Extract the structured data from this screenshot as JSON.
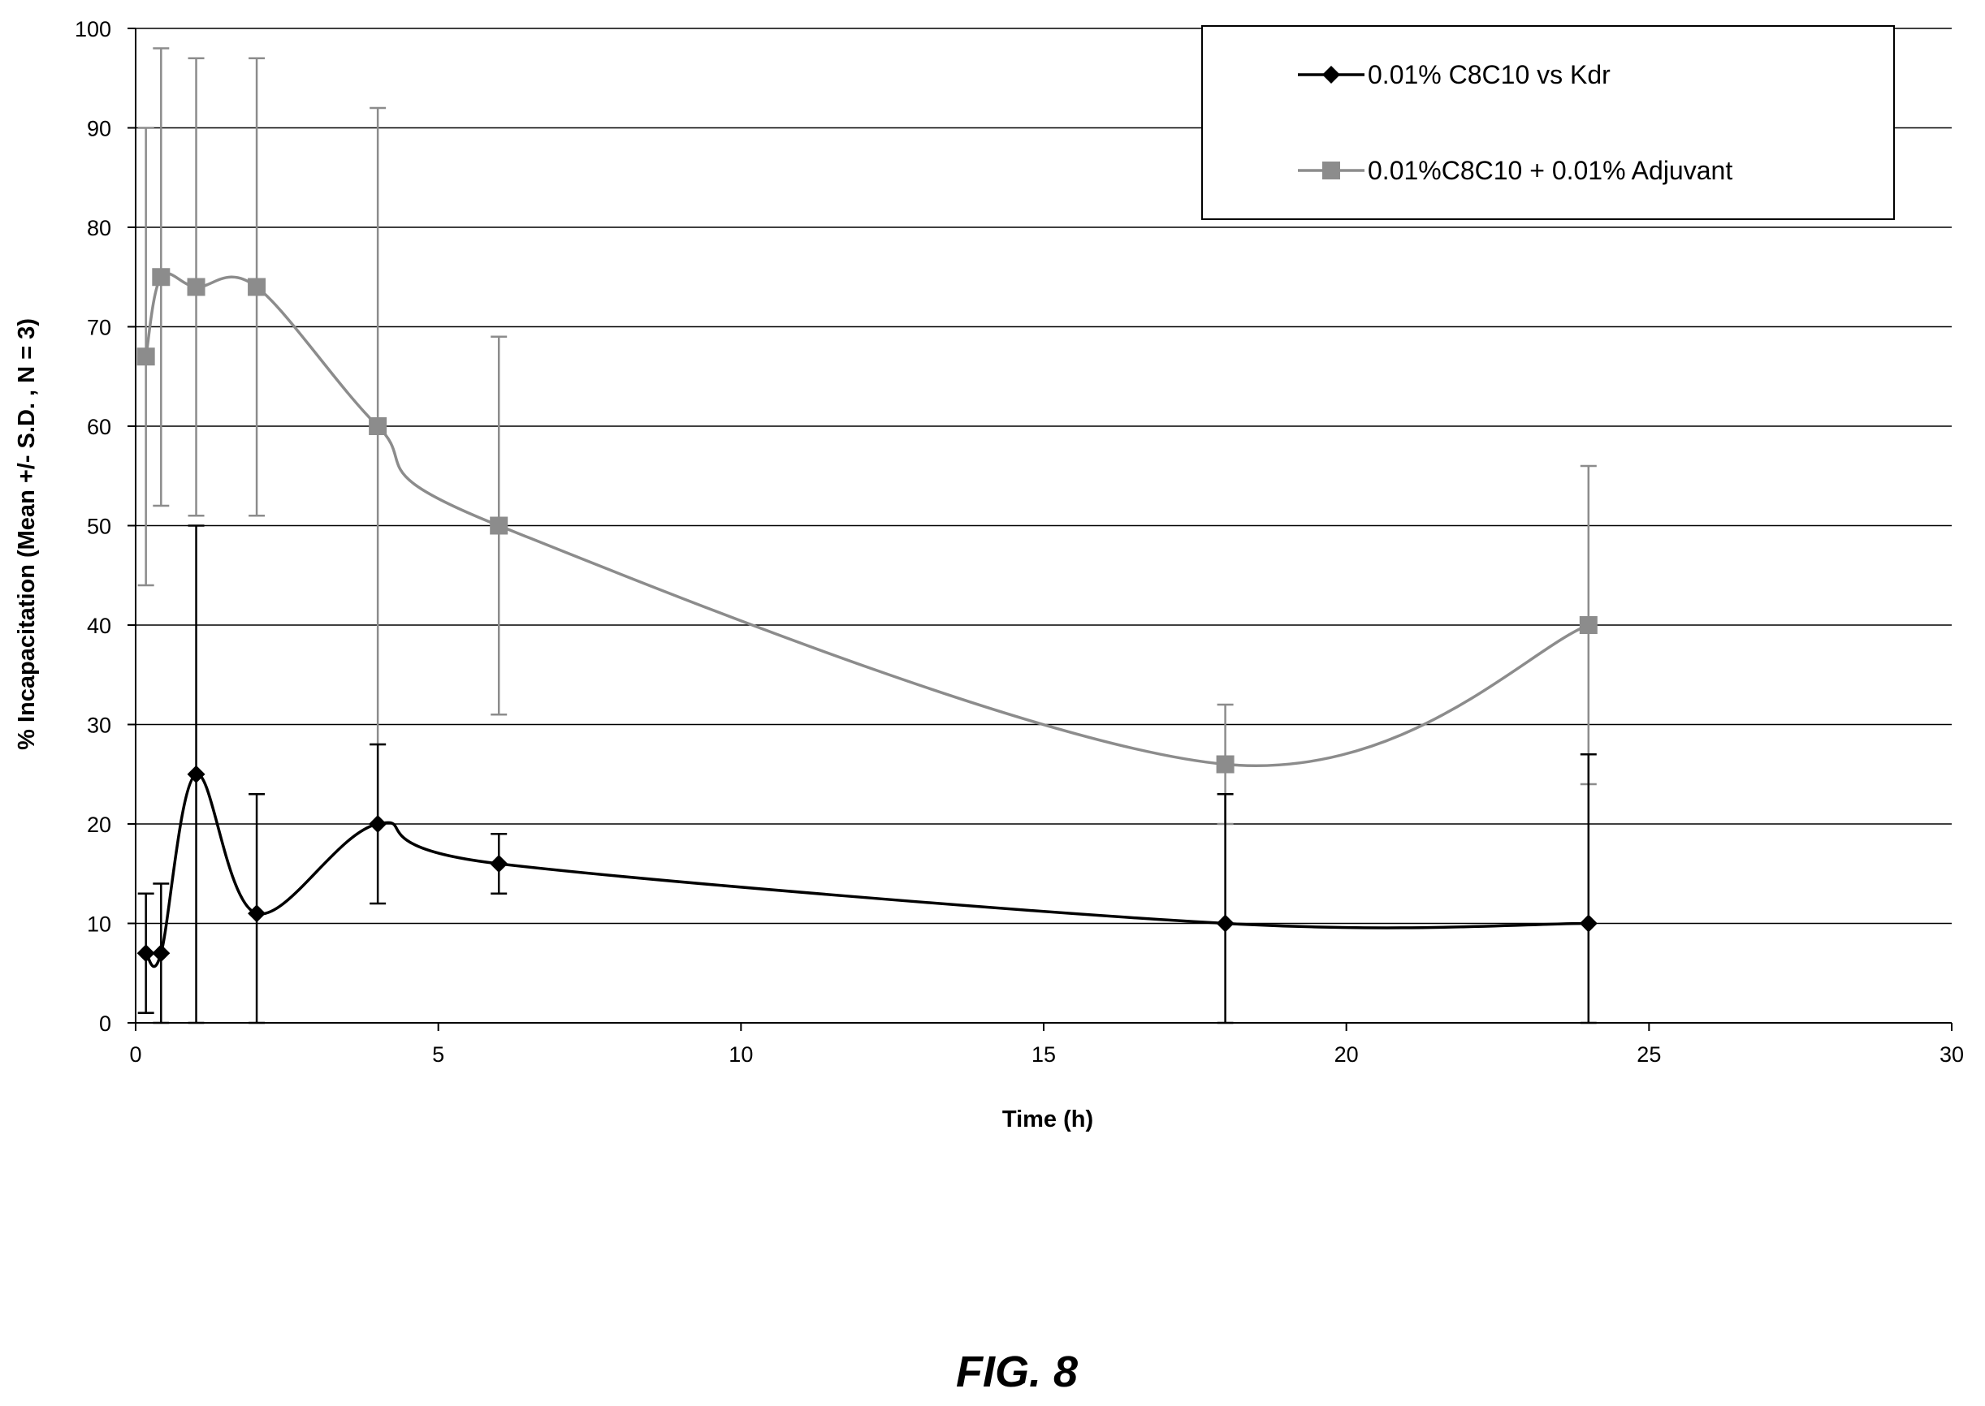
{
  "figure_caption": "FIG. 8",
  "chart_data": {
    "type": "line",
    "title": "",
    "xlabel": "Time (h)",
    "ylabel": "% Incapacitation (Mean +/- S.D. , N = 3)",
    "xlim": [
      0,
      30
    ],
    "ylim": [
      0,
      100
    ],
    "x_ticks": [
      0,
      5,
      10,
      15,
      20,
      25,
      30
    ],
    "y_ticks": [
      0,
      10,
      20,
      30,
      40,
      50,
      60,
      70,
      80,
      90,
      100
    ],
    "grid": "horizontal",
    "legend_position": "top-right",
    "series": [
      {
        "name": "0.01% C8C10 vs Kdr",
        "color": "#000000",
        "marker": "diamond",
        "x": [
          0.17,
          0.42,
          1,
          2,
          4,
          6,
          18,
          24
        ],
        "y": [
          7,
          7,
          25,
          11,
          20,
          16,
          10,
          10
        ],
        "err_plus": [
          6,
          7,
          25,
          12,
          8,
          3,
          13,
          17
        ],
        "err_minus": [
          6,
          7,
          25,
          11,
          8,
          3,
          10,
          10
        ]
      },
      {
        "name": "0.01%C8C10 + 0.01% Adjuvant",
        "color": "#8c8c8c",
        "marker": "square",
        "x": [
          0.17,
          0.42,
          1,
          2,
          4,
          6,
          18,
          24
        ],
        "y": [
          67,
          75,
          74,
          74,
          60,
          50,
          26,
          40
        ],
        "err_plus": [
          23,
          23,
          23,
          23,
          32,
          19,
          6,
          16
        ],
        "err_minus": [
          23,
          23,
          23,
          23,
          32,
          19,
          6,
          16
        ]
      }
    ]
  }
}
